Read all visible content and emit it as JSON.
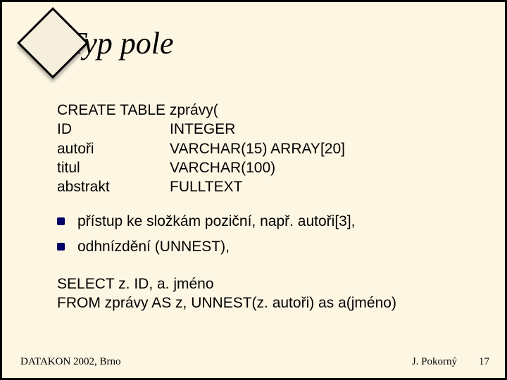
{
  "title": "Typ pole",
  "sql": {
    "line1": "CREATE TABLE zprávy(",
    "rows": [
      {
        "name": "ID",
        "type": "INTEGER"
      },
      {
        "name": "autoři",
        "type": "VARCHAR(15) ARRAY[20]"
      },
      {
        "name": "titul",
        "type": "VARCHAR(100)"
      },
      {
        "name": "abstrakt",
        "type": "FULLTEXT"
      }
    ]
  },
  "bullets": [
    "přístup ke složkám poziční, např. autoři[3],",
    "odhnízdění (UNNEST),"
  ],
  "select": {
    "line1": "SELECT z. ID, a. jméno",
    "line2": "FROM zprávy AS z, UNNEST(z. autoři) as a(jméno)"
  },
  "footer": {
    "left": "DATAKON 2002, Brno",
    "right": "J. Pokorný",
    "page": "17"
  },
  "colors": {
    "background": "#fdf6e3",
    "border": "#000000",
    "bullet": "#000066",
    "text": "#000000"
  }
}
